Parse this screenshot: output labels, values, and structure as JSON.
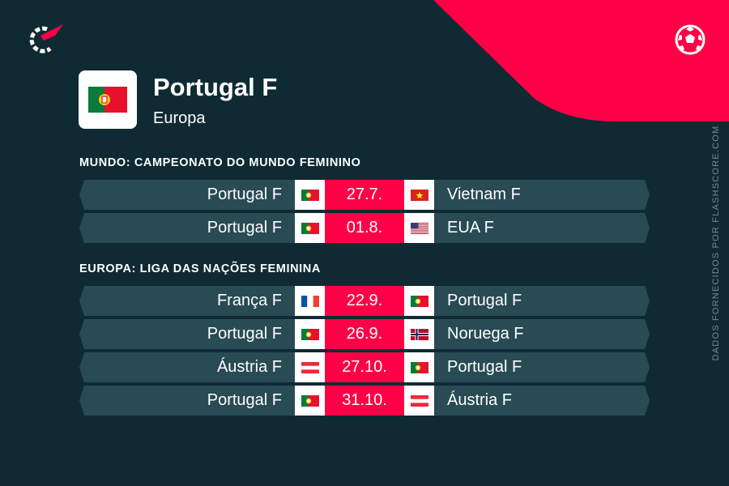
{
  "brand": {
    "logo_icon": "flashscore-logo-icon",
    "sport_icon": "soccer-ball-icon",
    "credit": "DADOS FORNECIDOS POR FLASHSCORE.COM",
    "accent_color": "#ff0046",
    "background_color": "#0f2a33",
    "row_color": "#284b54"
  },
  "team": {
    "name": "Portugal F",
    "region": "Europa",
    "flag": "portugal-flag-icon"
  },
  "sections": [
    {
      "title": "MUNDO: CAMPEONATO DO MUNDO FEMININO",
      "matches": [
        {
          "home": "Portugal F",
          "home_flag": "pt",
          "date": "27.7.",
          "away": "Vietnam F",
          "away_flag": "vn"
        },
        {
          "home": "Portugal F",
          "home_flag": "pt",
          "date": "01.8.",
          "away": "EUA F",
          "away_flag": "us"
        }
      ]
    },
    {
      "title": "EUROPA: LIGA DAS NAÇÕES FEMININA",
      "matches": [
        {
          "home": "França F",
          "home_flag": "fr",
          "date": "22.9.",
          "away": "Portugal F",
          "away_flag": "pt"
        },
        {
          "home": "Portugal F",
          "home_flag": "pt",
          "date": "26.9.",
          "away": "Noruega F",
          "away_flag": "no"
        },
        {
          "home": "Áustria F",
          "home_flag": "at",
          "date": "27.10.",
          "away": "Portugal F",
          "away_flag": "pt"
        },
        {
          "home": "Portugal F",
          "home_flag": "pt",
          "date": "31.10.",
          "away": "Áustria F",
          "away_flag": "at"
        }
      ]
    }
  ]
}
